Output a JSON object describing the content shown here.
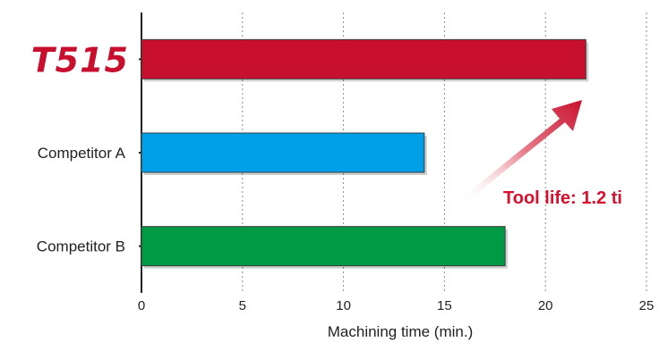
{
  "chart_data": {
    "type": "bar",
    "orientation": "horizontal",
    "categories": [
      "T515",
      "Competitor A",
      "Competitor B"
    ],
    "values": [
      22,
      14,
      18
    ],
    "xlabel": "Machining time (min.)",
    "ylabel": "",
    "title": "",
    "xlim": [
      0,
      25
    ],
    "xticks": [
      0,
      5,
      10,
      15,
      20,
      25
    ],
    "grid": "vertical dashed",
    "bar_colors": [
      "#c8102e",
      "#00a0e9",
      "#009944"
    ],
    "annotation": {
      "text": "Tool life: 1.2 ti",
      "color": "#d8102e"
    }
  }
}
